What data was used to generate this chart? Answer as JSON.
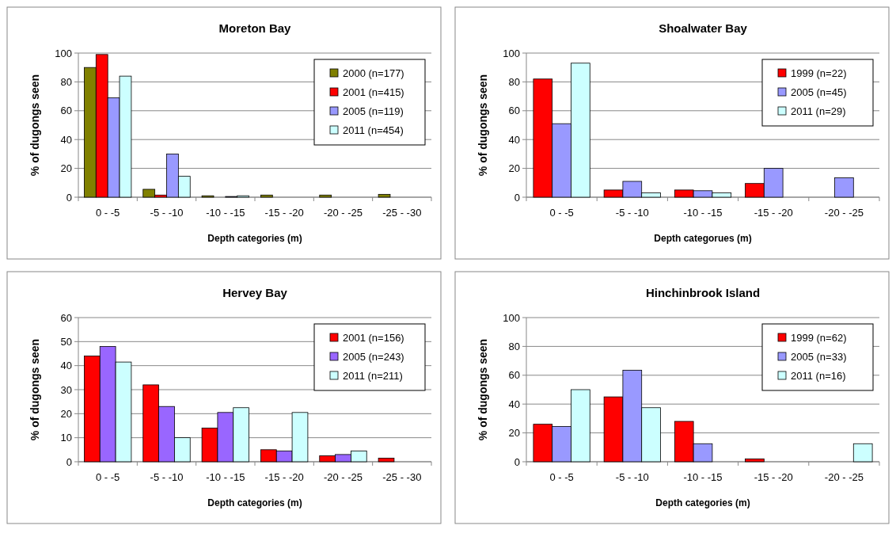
{
  "chart_data": [
    {
      "type": "bar",
      "title": "Moreton Bay",
      "xlabel": "Depth categories (m)",
      "ylabel": "% of dugongs seen",
      "categories": [
        "0 - -5",
        "-5 - -10",
        "-10 - -15",
        "-15 - -20",
        "-20 - -25",
        "-25 - -30"
      ],
      "series": [
        {
          "name": "2000 (n=177)",
          "color": "#808000",
          "values": [
            90,
            5.5,
            1,
            1.5,
            1.5,
            2
          ]
        },
        {
          "name": "2001 (n=415)",
          "color": "#ff0000",
          "values": [
            99,
            1.5,
            0,
            0,
            0,
            0
          ]
        },
        {
          "name": "2005 (n=119)",
          "color": "#9999ff",
          "values": [
            69,
            30,
            0.5,
            0,
            0,
            0
          ]
        },
        {
          "name": "2011 (n=454)",
          "color": "#ccffff",
          "values": [
            84,
            14.5,
            1,
            0,
            0,
            0
          ]
        }
      ],
      "ylim": [
        0,
        100
      ],
      "yticks": [
        0,
        20,
        40,
        60,
        80,
        100
      ],
      "grid": "y",
      "legend": "top right"
    },
    {
      "type": "bar",
      "title": "Shoalwater Bay",
      "xlabel": "Depth categorues (m)",
      "ylabel": "% of dugongs seen",
      "categories": [
        "0 - -5",
        "-5 - -10",
        "-10 - -15",
        "-15 - -20",
        "-20 - -25"
      ],
      "series": [
        {
          "name": "1999 (n=22)",
          "color": "#ff0000",
          "values": [
            82,
            5,
            5,
            9.5,
            0
          ]
        },
        {
          "name": "2005 (n=45)",
          "color": "#9999ff",
          "values": [
            51,
            11,
            4.5,
            20,
            13.5
          ]
        },
        {
          "name": "2011 (n=29)",
          "color": "#ccffff",
          "values": [
            93,
            3,
            3,
            0,
            0
          ]
        }
      ],
      "ylim": [
        0,
        100
      ],
      "yticks": [
        0,
        20,
        40,
        60,
        80,
        100
      ],
      "grid": "y",
      "legend": "top right"
    },
    {
      "type": "bar",
      "title": "Hervey Bay",
      "xlabel": "Depth categories (m)",
      "ylabel": "% of dugongs seen",
      "categories": [
        "0 - -5",
        "-5 - -10",
        "-10 - -15",
        "-15 - -20",
        "-20 - -25",
        "-25 - -30"
      ],
      "series": [
        {
          "name": "2001 (n=156)",
          "color": "#ff0000",
          "values": [
            44,
            32,
            14,
            5,
            2.5,
            1.5
          ]
        },
        {
          "name": "2005 (n=243)",
          "color": "#9966ff",
          "values": [
            48,
            23,
            20.5,
            4.5,
            3,
            0
          ]
        },
        {
          "name": "2011 (n=211)",
          "color": "#ccffff",
          "values": [
            41.5,
            10,
            22.5,
            20.5,
            4.5,
            0
          ]
        }
      ],
      "ylim": [
        0,
        60
      ],
      "yticks": [
        0,
        10,
        20,
        30,
        40,
        50,
        60
      ],
      "grid": "y",
      "legend": "top right"
    },
    {
      "type": "bar",
      "title": "Hinchinbrook Island",
      "xlabel": "Depth categories (m)",
      "ylabel": "% of dugongs seen",
      "categories": [
        "0 - -5",
        "-5 - -10",
        "-10 - -15",
        "-15 - -20",
        "-20 - -25"
      ],
      "series": [
        {
          "name": "1999 (n=62)",
          "color": "#ff0000",
          "values": [
            26,
            45,
            28,
            2,
            0
          ]
        },
        {
          "name": "2005 (n=33)",
          "color": "#9999ff",
          "values": [
            24.5,
            63.5,
            12.5,
            0,
            0
          ]
        },
        {
          "name": "2011 (n=16)",
          "color": "#ccffff",
          "values": [
            50,
            37.5,
            0,
            0,
            12.5
          ]
        }
      ],
      "ylim": [
        0,
        100
      ],
      "yticks": [
        0,
        20,
        40,
        60,
        80,
        100
      ],
      "grid": "y",
      "legend": "top right"
    }
  ]
}
